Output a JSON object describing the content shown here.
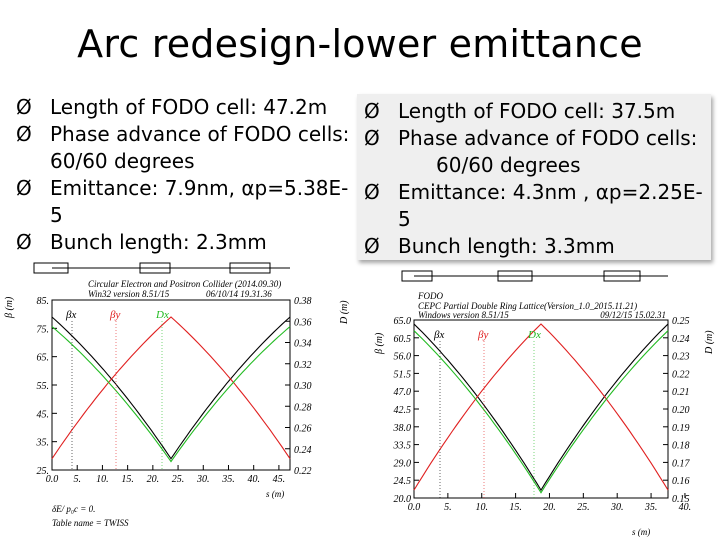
{
  "slide": {
    "title": "Arc redesign-lower emittance"
  },
  "left_bullets": [
    {
      "text": "Length of FODO cell: 47.2m"
    },
    {
      "text": "Phase advance of FODO cells:",
      "cont": "60/60 degrees"
    },
    {
      "text": "Emittance: 7.9nm, αp=5.38E-5"
    },
    {
      "text": "Bunch length: 2.3mm"
    }
  ],
  "right_bullets": [
    {
      "text": "Length of FODO cell: 37.5m"
    },
    {
      "text": "Phase advance of FODO cells:",
      "cont": "60/60 degrees"
    },
    {
      "text": "Emittance: 4.3nm , αp=2.25E-5"
    },
    {
      "text": "Bunch length: 3.3mm"
    }
  ],
  "bullet_glyph": "Ø",
  "chart_data": [
    {
      "type": "line",
      "header": [
        "Circular Electron and Positron Collider (2014.09.30)",
        "Win32 version 8.51/15",
        "06/10/14  19.31.36"
      ],
      "ylabel": "β (m)",
      "y2label": "D (m)",
      "xlabel": "s (m)",
      "x_ticks": [
        "0.0",
        "5.",
        "10.",
        "15.",
        "20.",
        "25.",
        "30.",
        "35.",
        "40.",
        "45."
      ],
      "y_ticks": [
        "25.",
        "35.",
        "45.",
        "55.",
        "65.",
        "75.",
        "85."
      ],
      "y2_ticks": [
        "0.22",
        "0.24",
        "0.26",
        "0.28",
        "0.30",
        "0.32",
        "0.34",
        "0.36",
        "0.38"
      ],
      "xlim": [
        0,
        47.2
      ],
      "ylim": [
        25,
        85
      ],
      "y2lim": [
        0.22,
        0.38
      ],
      "legend": [
        "βx",
        "βy",
        "Dx"
      ],
      "footer": [
        "δE/ p₀c = 0.",
        "Table name = TWISS"
      ],
      "series": [
        {
          "name": "βx",
          "color": "#000000",
          "x": [
            0,
            23.6,
            47.2
          ],
          "y": [
            79,
            29,
            79
          ]
        },
        {
          "name": "βy",
          "color": "#e02020",
          "x": [
            0,
            23.6,
            47.2
          ],
          "y": [
            29,
            79,
            29
          ]
        },
        {
          "name": "Dx",
          "color": "#22bb22",
          "axis": "y2",
          "x": [
            0,
            23.6,
            47.2
          ],
          "y": [
            0.355,
            0.228,
            0.355
          ]
        }
      ]
    },
    {
      "type": "line",
      "header": [
        "FODO",
        "CEPC Partial Double Ring Lattice(Version_1.0_2015.11.21)",
        "Windows version 8.51/15",
        "09/12/15  15.02.31"
      ],
      "ylabel": "β (m)",
      "y2label": "D (m)",
      "xlabel": "s (m)",
      "x_ticks": [
        "0.0",
        "5.",
        "10.",
        "15.",
        "20.",
        "25.",
        "30.",
        "35.",
        "40."
      ],
      "y_ticks": [
        "20.0",
        "24.5",
        "29.0",
        "33.5",
        "38.0",
        "42.5",
        "47.0",
        "51.5",
        "56.0",
        "60.5",
        "65.0"
      ],
      "y2_ticks": [
        "0.15",
        "0.16",
        "0.17",
        "0.18",
        "0.19",
        "0.20",
        "0.21",
        "0.22",
        "0.23",
        "0.24",
        "0.25"
      ],
      "xlim": [
        0,
        37.5
      ],
      "ylim": [
        20,
        65
      ],
      "y2lim": [
        0.15,
        0.25
      ],
      "legend": [
        "βx",
        "βy",
        "Dx"
      ],
      "series": [
        {
          "name": "βx",
          "color": "#000000",
          "x": [
            0,
            18.75,
            37.5
          ],
          "y": [
            64,
            22,
            64
          ]
        },
        {
          "name": "βy",
          "color": "#e02020",
          "x": [
            0,
            18.75,
            37.5
          ],
          "y": [
            22,
            64,
            22
          ]
        },
        {
          "name": "Dx",
          "color": "#22bb22",
          "axis": "y2",
          "x": [
            0,
            18.75,
            37.5
          ],
          "y": [
            0.244,
            0.153,
            0.244
          ]
        }
      ]
    }
  ]
}
